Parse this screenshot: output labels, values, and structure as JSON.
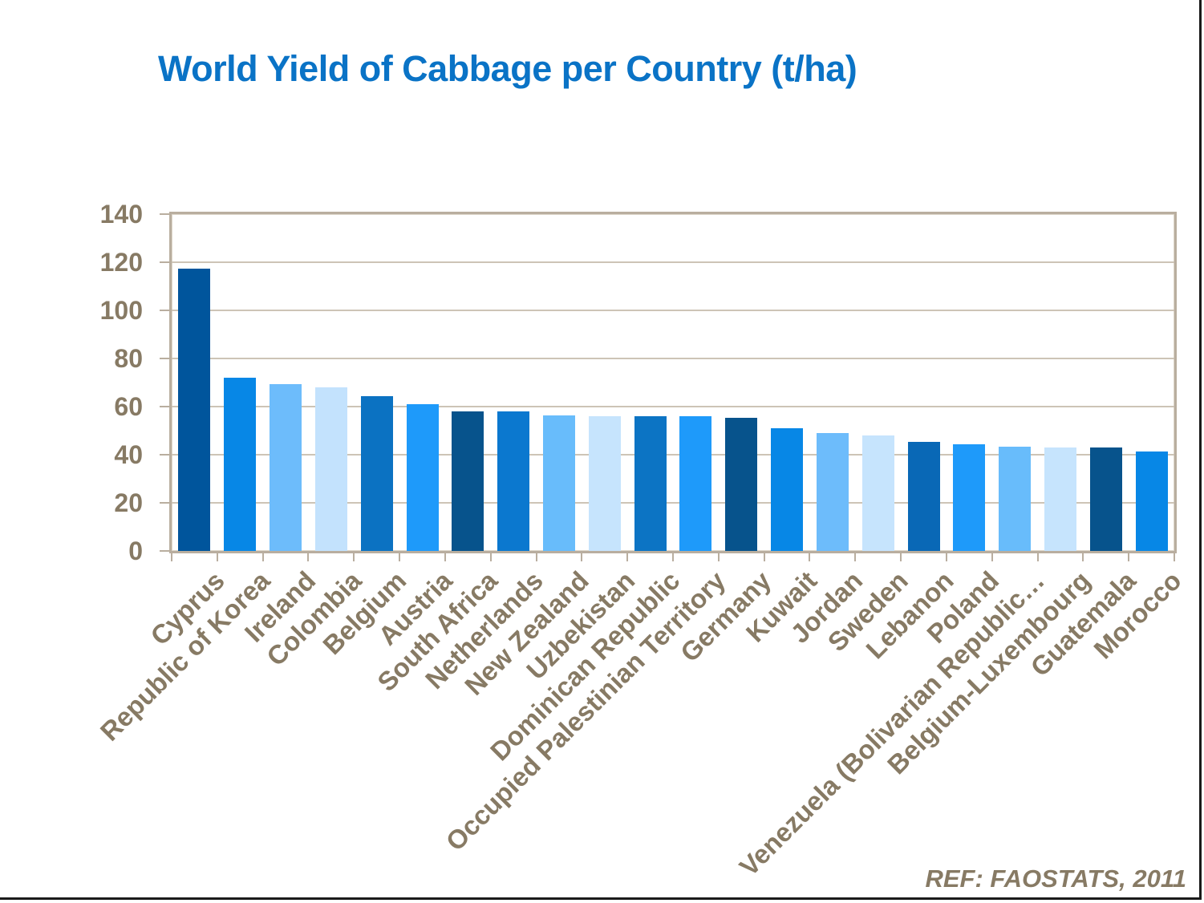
{
  "title": "World Yield of Cabbage per Country (t/ha)",
  "reference": "REF: FAOSTATS, 2011",
  "colors": {
    "title_text": "#0a73c6",
    "axis_text": "#877a64",
    "gridline": "#cdc4b6",
    "plot_frame": "#b9ae9f",
    "slide_edge": "#1a1a1a",
    "background": "#ffffff"
  },
  "chart_data": {
    "type": "bar",
    "title": "World Yield of Cabbage per Country (t/ha)",
    "xlabel": "",
    "ylabel": "",
    "ylim": [
      0,
      140
    ],
    "yticks": [
      0,
      20,
      40,
      60,
      80,
      100,
      120,
      140
    ],
    "grid": "horizontal",
    "legend": "none",
    "categories": [
      "Cyprus",
      "Republic of Korea",
      "Ireland",
      "Colombia",
      "Belgium",
      "Austria",
      "South Africa",
      "Netherlands",
      "New Zealand",
      "Uzbekistan",
      "Dominican Republic",
      "Occupied Palestinian Territory",
      "Germany",
      "Kuwait",
      "Jordan",
      "Sweden",
      "Lebanon",
      "Poland",
      "Venezuela (Bolivarian Republic…",
      "Belgium-Luxembourg",
      "Guatemala",
      "Morocco"
    ],
    "values": [
      117.5,
      72,
      69.5,
      68,
      64.5,
      61,
      58,
      58,
      56.5,
      56,
      56,
      56,
      55.5,
      51,
      49,
      48,
      45.5,
      44.5,
      43.5,
      43,
      43,
      41.5
    ],
    "bar_colors": [
      "#00559c",
      "#0787e6",
      "#6dbcfb",
      "#c3e2fd",
      "#0b72c2",
      "#1e9afa",
      "#07538c",
      "#0b78cf",
      "#68bcfb",
      "#c6e4fd",
      "#0c74c4",
      "#1e9afa",
      "#07538c",
      "#0787e6",
      "#6dbcfb",
      "#c6e4fd",
      "#0968b6",
      "#1e9afa",
      "#68bcfb",
      "#c6e4fd",
      "#07538c",
      "#0787e6"
    ]
  }
}
